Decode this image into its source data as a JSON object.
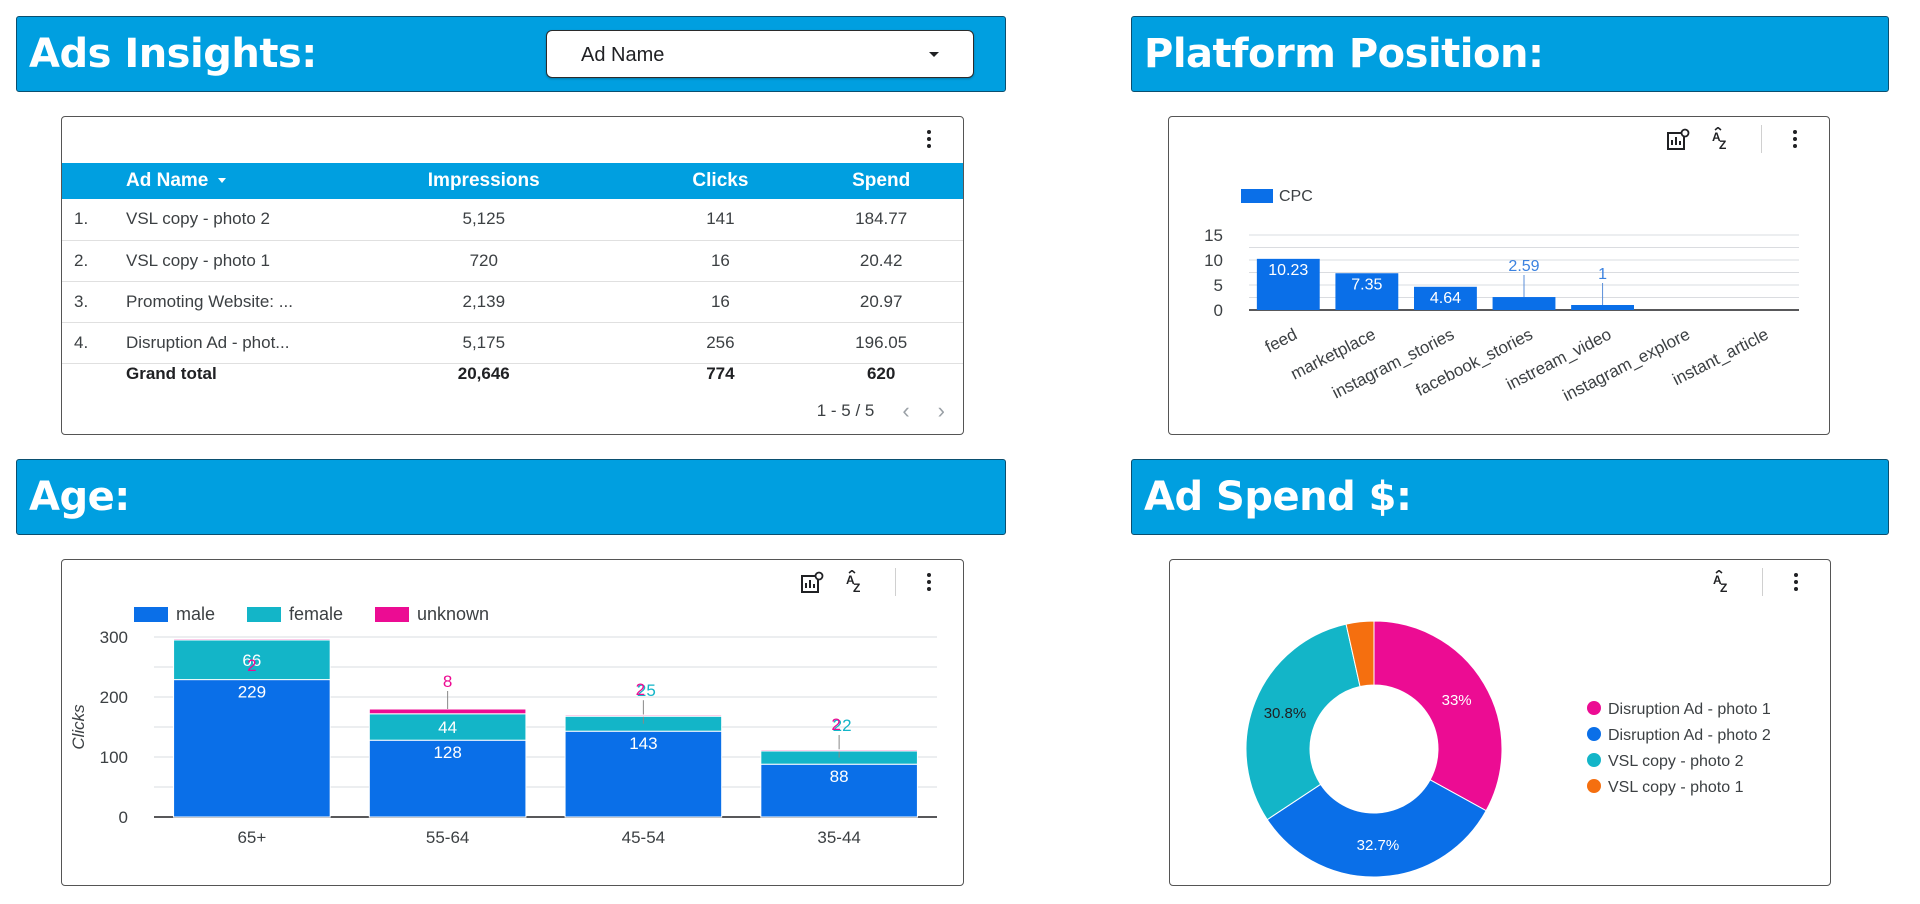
{
  "headers": {
    "ads_insights": "Ads Insights:",
    "platform_position": "Platform Position:",
    "age": "Age:",
    "ad_spend": "Ad Spend $:"
  },
  "dropdown": {
    "label": "Ad Name"
  },
  "table": {
    "columns": [
      "Ad Name",
      "Impressions",
      "Clicks",
      "Spend"
    ],
    "rows": [
      {
        "idx": "1.",
        "name": "VSL copy - photo 2",
        "impressions": "5,125",
        "clicks": "141",
        "spend": "184.77"
      },
      {
        "idx": "2.",
        "name": "VSL copy - photo 1",
        "impressions": "720",
        "clicks": "16",
        "spend": "20.42"
      },
      {
        "idx": "3.",
        "name": "Promoting Website: ...",
        "impressions": "2,139",
        "clicks": "16",
        "spend": "20.97"
      },
      {
        "idx": "4.",
        "name": "Disruption Ad - phot...",
        "impressions": "5,175",
        "clicks": "256",
        "spend": "196.05"
      }
    ],
    "total": {
      "label": "Grand total",
      "impressions": "20,646",
      "clicks": "774",
      "spend": "620"
    },
    "pagination": "1 - 5 / 5"
  },
  "icons": {
    "kebab": "more-vert-icon",
    "explore": "chart-explore-icon",
    "sort": "sort-az-icon",
    "prev": "chevron-left-icon",
    "next": "chevron-right-icon"
  },
  "colors": {
    "header": "#009fe0",
    "blue": "#0a6fe8",
    "teal": "#13b5c8",
    "magenta": "#ec0c93",
    "orange": "#f56f0f"
  },
  "chart_data": [
    {
      "type": "bar",
      "title": "Platform Position",
      "legend": [
        "CPC"
      ],
      "categories": [
        "feed",
        "marketplace",
        "instagram_stories",
        "facebook_stories",
        "instream_video",
        "instagram_explore",
        "instant_article"
      ],
      "values": [
        10.23,
        7.35,
        4.64,
        2.59,
        1,
        0,
        0
      ],
      "labels": [
        "10.23",
        "7.35",
        "4.64",
        "2.59",
        "1",
        "",
        ""
      ],
      "yticks": [
        "15",
        "10",
        "5",
        "0"
      ],
      "ylim": [
        0,
        15
      ]
    },
    {
      "type": "bar",
      "stacked": true,
      "title": "Age",
      "ylabel": "Clicks",
      "categories": [
        "65+",
        "55-64",
        "45-54",
        "35-44"
      ],
      "series": [
        {
          "name": "male",
          "values": [
            229,
            128,
            143,
            88
          ]
        },
        {
          "name": "female",
          "values": [
            66,
            44,
            25,
            22
          ]
        },
        {
          "name": "unknown",
          "values": [
            2,
            8,
            2,
            2
          ]
        }
      ],
      "yticks": [
        "300",
        "200",
        "100",
        "0"
      ],
      "ylim": [
        0,
        300
      ]
    },
    {
      "type": "pie",
      "donut": true,
      "title": "Ad Spend $",
      "labels": [
        "Disruption Ad - photo 1",
        "Disruption Ad - photo 2",
        "VSL copy - photo 2",
        "VSL copy - photo 1"
      ],
      "values": [
        33,
        32.7,
        30.8,
        3.5
      ],
      "slice_labels": [
        "33%",
        "32.7%",
        "30.8%",
        ""
      ]
    }
  ]
}
